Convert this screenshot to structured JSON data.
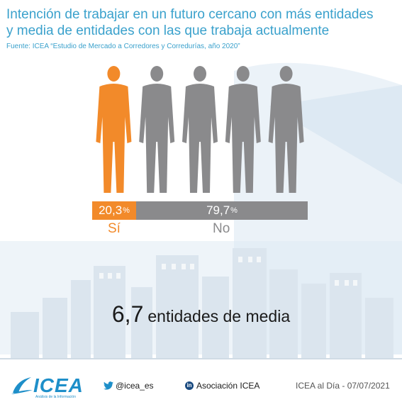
{
  "title_line1": "Intención de trabajar en un futuro cercano con más entidades",
  "title_line2": "y media de entidades con las que trabaja actualmente",
  "source": "Fuente: ICEA “Estudio de Mercado a Corredores y Corredurías, año 2020”",
  "colors": {
    "yes": "#f28a2a",
    "no": "#8a8a8c",
    "title": "#3aa1cc",
    "brand": "#1e8fc9"
  },
  "chart_data": {
    "type": "bar",
    "categories": [
      "Sí",
      "No"
    ],
    "values": [
      20.3,
      79.7
    ],
    "value_labels": [
      "20,3",
      "79,7"
    ],
    "unit": "%",
    "stacked": true,
    "figures_per_category": [
      1,
      4
    ]
  },
  "stat": {
    "number": "6,7",
    "text": "entidades de media"
  },
  "footer": {
    "logo": "ICEA",
    "logo_tagline": "Análisis de la Información",
    "twitter_icon": "twitter-icon",
    "twitter": "@icea_es",
    "linkedin_icon": "linkedin-icon",
    "linkedin": "Asociación ICEA",
    "date": "ICEA al Día - 07/07/2021"
  }
}
